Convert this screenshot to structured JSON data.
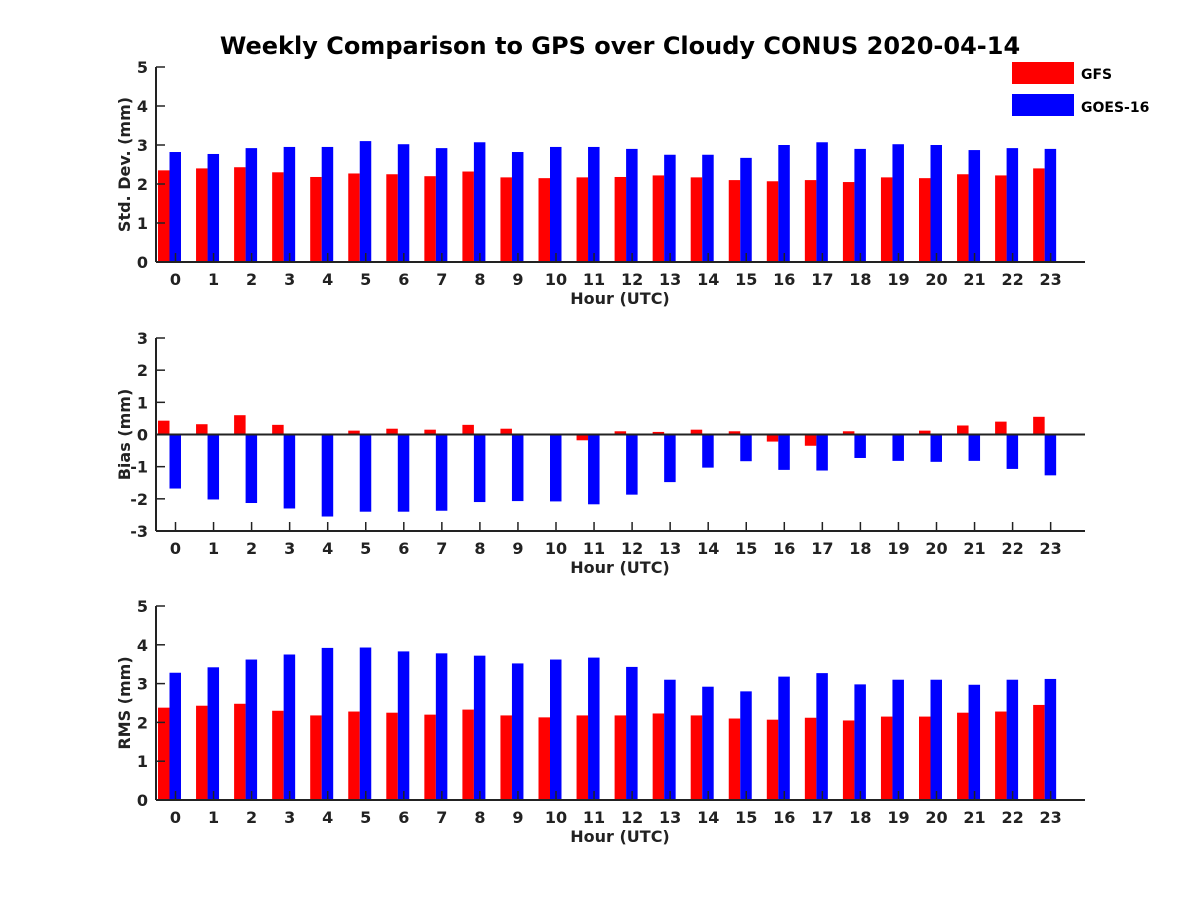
{
  "title": "Weekly Comparison to GPS over Cloudy CONUS 2020-04-14",
  "legend": {
    "placement": "top-right",
    "items": [
      {
        "name": "GFS",
        "color": "#ff0000"
      },
      {
        "name": "GOES-16",
        "color": "#0000ff"
      }
    ]
  },
  "chart_data": [
    {
      "type": "bar",
      "xlabel": "Hour (UTC)",
      "ylabel": "Std. Dev. (mm)",
      "ylim": [
        0,
        5
      ],
      "yticks": [
        0,
        1,
        2,
        3,
        4,
        5
      ],
      "categories": [
        "0",
        "1",
        "2",
        "3",
        "4",
        "5",
        "6",
        "7",
        "8",
        "9",
        "10",
        "11",
        "12",
        "13",
        "14",
        "15",
        "16",
        "17",
        "18",
        "19",
        "20",
        "21",
        "22",
        "23"
      ],
      "series": [
        {
          "name": "GFS",
          "color": "#ff0000",
          "values": [
            2.35,
            2.4,
            2.43,
            2.3,
            2.18,
            2.27,
            2.25,
            2.2,
            2.32,
            2.17,
            2.15,
            2.17,
            2.18,
            2.22,
            2.17,
            2.1,
            2.07,
            2.1,
            2.05,
            2.17,
            2.15,
            2.25,
            2.22,
            2.4
          ]
        },
        {
          "name": "GOES-16",
          "color": "#0000ff",
          "values": [
            2.82,
            2.77,
            2.92,
            2.95,
            2.95,
            3.1,
            3.02,
            2.92,
            3.07,
            2.82,
            2.95,
            2.95,
            2.9,
            2.75,
            2.75,
            2.67,
            3.0,
            3.07,
            2.9,
            3.02,
            3.0,
            2.87,
            2.92,
            2.9
          ]
        }
      ]
    },
    {
      "type": "bar",
      "xlabel": "Hour (UTC)",
      "ylabel": "Bias (mm)",
      "ylim": [
        -3,
        3
      ],
      "yticks": [
        -3,
        -2,
        -1,
        0,
        1,
        2,
        3
      ],
      "categories": [
        "0",
        "1",
        "2",
        "3",
        "4",
        "5",
        "6",
        "7",
        "8",
        "9",
        "10",
        "11",
        "12",
        "13",
        "14",
        "15",
        "16",
        "17",
        "18",
        "19",
        "20",
        "21",
        "22",
        "23"
      ],
      "series": [
        {
          "name": "GFS",
          "color": "#ff0000",
          "values": [
            0.43,
            0.32,
            0.6,
            0.3,
            0.0,
            0.12,
            0.18,
            0.15,
            0.3,
            0.18,
            0.03,
            -0.18,
            0.1,
            0.08,
            0.15,
            0.1,
            -0.22,
            -0.35,
            0.1,
            0.03,
            0.12,
            0.28,
            0.4,
            0.55
          ]
        },
        {
          "name": "GOES-16",
          "color": "#0000ff",
          "values": [
            -1.68,
            -2.02,
            -2.13,
            -2.3,
            -2.55,
            -2.4,
            -2.4,
            -2.37,
            -2.1,
            -2.07,
            -2.08,
            -2.17,
            -1.87,
            -1.48,
            -1.03,
            -0.83,
            -1.1,
            -1.12,
            -0.73,
            -0.82,
            -0.85,
            -0.82,
            -1.07,
            -1.27
          ]
        }
      ]
    },
    {
      "type": "bar",
      "xlabel": "Hour (UTC)",
      "ylabel": "RMS (mm)",
      "ylim": [
        0,
        5
      ],
      "yticks": [
        0,
        1,
        2,
        3,
        4,
        5
      ],
      "categories": [
        "0",
        "1",
        "2",
        "3",
        "4",
        "5",
        "6",
        "7",
        "8",
        "9",
        "10",
        "11",
        "12",
        "13",
        "14",
        "15",
        "16",
        "17",
        "18",
        "19",
        "20",
        "21",
        "22",
        "23"
      ],
      "series": [
        {
          "name": "GFS",
          "color": "#ff0000",
          "values": [
            2.38,
            2.43,
            2.48,
            2.3,
            2.18,
            2.28,
            2.25,
            2.2,
            2.33,
            2.18,
            2.13,
            2.18,
            2.18,
            2.23,
            2.18,
            2.1,
            2.07,
            2.12,
            2.05,
            2.15,
            2.15,
            2.25,
            2.28,
            2.45
          ]
        },
        {
          "name": "GOES-16",
          "color": "#0000ff",
          "values": [
            3.28,
            3.42,
            3.62,
            3.75,
            3.92,
            3.93,
            3.83,
            3.78,
            3.72,
            3.52,
            3.62,
            3.67,
            3.43,
            3.1,
            2.92,
            2.8,
            3.18,
            3.27,
            2.98,
            3.1,
            3.1,
            2.97,
            3.1,
            3.12
          ]
        }
      ]
    }
  ]
}
